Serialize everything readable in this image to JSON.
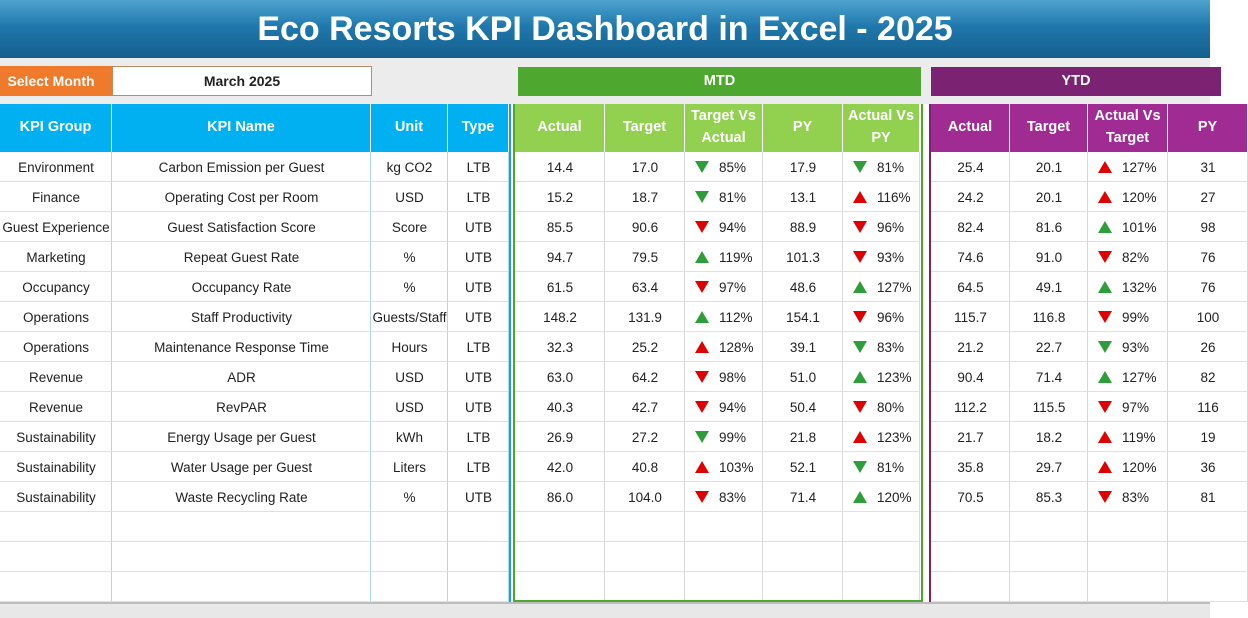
{
  "header": {
    "title": "Eco Resorts KPI Dashboard in Excel - 2025"
  },
  "controls": {
    "select_label": "Select Month",
    "selected_month": "March 2025"
  },
  "sections": {
    "mtd": "MTD",
    "ytd": "YTD"
  },
  "table": {
    "columns": {
      "kpi": [
        "KPI Group",
        "KPI Name",
        "Unit",
        "Type"
      ],
      "mtd": [
        "Actual",
        "Target",
        "Target Vs Actual",
        "PY",
        "Actual Vs PY"
      ],
      "ytd": [
        "Actual",
        "Target",
        "Actual Vs Target",
        "PY"
      ]
    },
    "rows": [
      {
        "group": "Environment",
        "name": "Carbon Emission per Guest",
        "unit": "kg CO2",
        "type": "LTB",
        "mtd": [
          "14.4",
          "17.0",
          "85%",
          "17.9",
          "81%"
        ],
        "ytd": [
          "25.4",
          "20.1",
          "127%",
          "31"
        ]
      },
      {
        "group": "Finance",
        "name": "Operating Cost per Room",
        "unit": "USD",
        "type": "LTB",
        "mtd": [
          "15.2",
          "18.7",
          "81%",
          "13.1",
          "116%"
        ],
        "ytd": [
          "24.2",
          "20.1",
          "120%",
          "27"
        ]
      },
      {
        "group": "Guest Experience",
        "name": "Guest Satisfaction Score",
        "unit": "Score",
        "type": "UTB",
        "mtd": [
          "85.5",
          "90.6",
          "94%",
          "88.9",
          "96%"
        ],
        "ytd": [
          "82.4",
          "81.6",
          "101%",
          "98"
        ]
      },
      {
        "group": "Marketing",
        "name": "Repeat Guest Rate",
        "unit": "%",
        "type": "UTB",
        "mtd": [
          "94.7",
          "79.5",
          "119%",
          "101.3",
          "93%"
        ],
        "ytd": [
          "74.6",
          "91.0",
          "82%",
          "76"
        ]
      },
      {
        "group": "Occupancy",
        "name": "Occupancy Rate",
        "unit": "%",
        "type": "UTB",
        "mtd": [
          "61.5",
          "63.4",
          "97%",
          "48.6",
          "127%"
        ],
        "ytd": [
          "64.5",
          "49.1",
          "132%",
          "76"
        ]
      },
      {
        "group": "Operations",
        "name": "Staff Productivity",
        "unit": "Guests/Staff",
        "type": "UTB",
        "mtd": [
          "148.2",
          "131.9",
          "112%",
          "154.1",
          "96%"
        ],
        "ytd": [
          "115.7",
          "116.8",
          "99%",
          "100"
        ]
      },
      {
        "group": "Operations",
        "name": "Maintenance Response Time",
        "unit": "Hours",
        "type": "LTB",
        "mtd": [
          "32.3",
          "25.2",
          "128%",
          "39.1",
          "83%"
        ],
        "ytd": [
          "21.2",
          "22.7",
          "93%",
          "26"
        ]
      },
      {
        "group": "Revenue",
        "name": "ADR",
        "unit": "USD",
        "type": "UTB",
        "mtd": [
          "63.0",
          "64.2",
          "98%",
          "51.0",
          "123%"
        ],
        "ytd": [
          "90.4",
          "71.4",
          "127%",
          "82"
        ]
      },
      {
        "group": "Revenue",
        "name": "RevPAR",
        "unit": "USD",
        "type": "UTB",
        "mtd": [
          "40.3",
          "42.7",
          "94%",
          "50.4",
          "80%"
        ],
        "ytd": [
          "112.2",
          "115.5",
          "97%",
          "116"
        ]
      },
      {
        "group": "Sustainability",
        "name": "Energy Usage per Guest",
        "unit": "kWh",
        "type": "LTB",
        "mtd": [
          "26.9",
          "27.2",
          "99%",
          "21.8",
          "123%"
        ],
        "ytd": [
          "21.7",
          "18.2",
          "119%",
          "19"
        ]
      },
      {
        "group": "Sustainability",
        "name": "Water Usage per Guest",
        "unit": "Liters",
        "type": "LTB",
        "mtd": [
          "42.0",
          "40.8",
          "103%",
          "52.1",
          "81%"
        ],
        "ytd": [
          "35.8",
          "29.7",
          "120%",
          "36"
        ]
      },
      {
        "group": "Sustainability",
        "name": "Waste Recycling Rate",
        "unit": "%",
        "type": "UTB",
        "mtd": [
          "86.0",
          "104.0",
          "83%",
          "71.4",
          "120%"
        ],
        "ytd": [
          "70.5",
          "85.3",
          "83%",
          "81"
        ]
      }
    ]
  }
}
